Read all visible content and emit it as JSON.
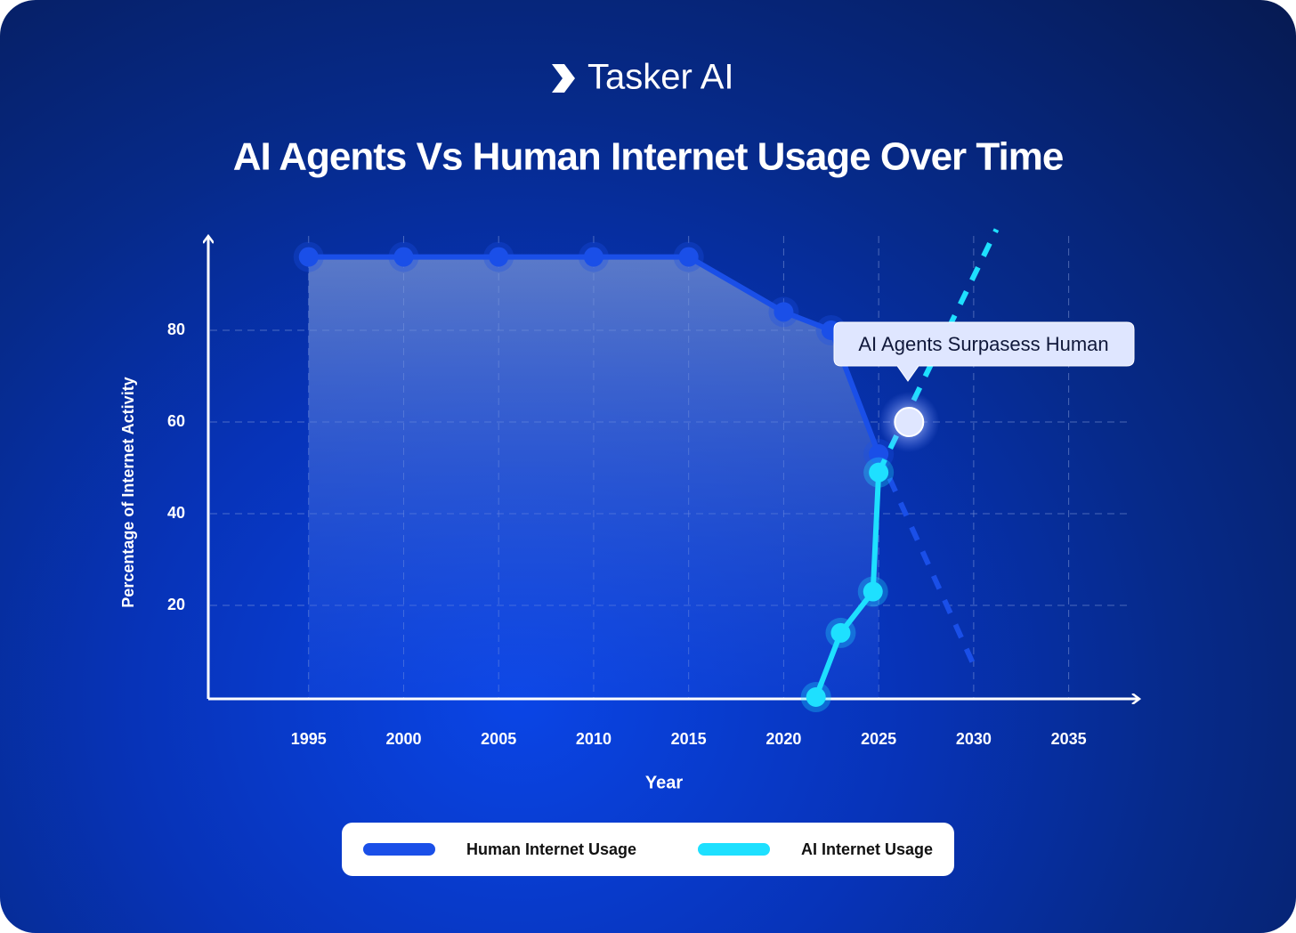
{
  "brand": "Tasker AI",
  "chart_data": {
    "type": "line",
    "title": "AI Agents Vs Human Internet Usage Over Time",
    "xlabel": "Year",
    "ylabel": "Percentage of Internet Activity",
    "xlim": [
      1990,
      2039
    ],
    "xticks": [
      1995,
      2000,
      2005,
      2010,
      2015,
      2020,
      2025,
      2030,
      2035
    ],
    "ylim": [
      0,
      100
    ],
    "yticks": [
      20,
      40,
      60,
      80
    ],
    "grid": true,
    "series": [
      {
        "name": "Human Internet Usage",
        "color": "#1a4fe8",
        "fill": true,
        "x": [
          1995,
          2000,
          2005,
          2010,
          2015,
          2020,
          2022.5,
          2025
        ],
        "values": [
          96,
          96,
          96,
          96,
          96,
          84,
          80,
          53
        ],
        "projection": {
          "x": [
            2025,
            2030
          ],
          "values": [
            53,
            7
          ]
        }
      },
      {
        "name": "AI Internet Usage",
        "color": "#1ee0ff",
        "fill": false,
        "x": [
          2021.7,
          2023,
          2024.7,
          2025
        ],
        "values": [
          0,
          14,
          23,
          49
        ],
        "projection": {
          "x": [
            2025,
            2031.2
          ],
          "values": [
            49,
            102
          ]
        }
      }
    ],
    "annotation": {
      "text": "AI Agents Surpasess Human",
      "x": 2026.6,
      "y": 60
    }
  }
}
